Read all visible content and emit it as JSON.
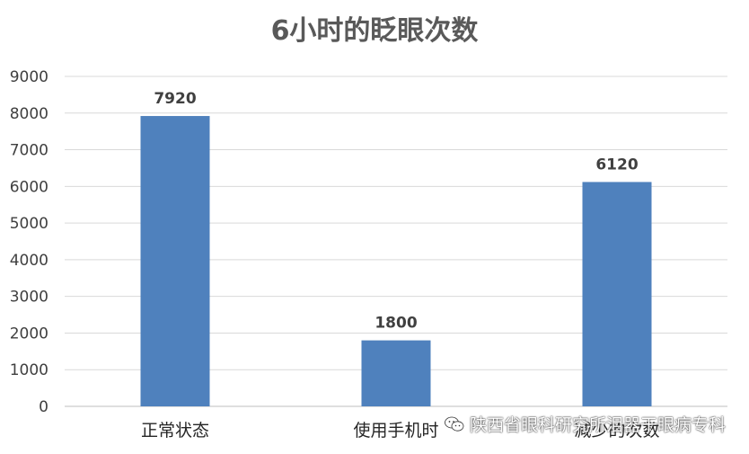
{
  "chart_data": {
    "type": "bar",
    "title": "6小时的眨眼次数",
    "categories": [
      "正常状态",
      "使用手机时",
      "减少的次数"
    ],
    "values": [
      7920,
      1800,
      6120
    ],
    "ylim": [
      0,
      9000
    ],
    "yticks": [
      0,
      1000,
      2000,
      3000,
      4000,
      5000,
      6000,
      7000,
      8000,
      9000
    ],
    "grid": true,
    "legend": "none",
    "bar_color": "#4f81bd"
  },
  "watermark": {
    "icon": "wechat-icon",
    "text": "陕西省眼科研究所泪器干眼病专科"
  }
}
